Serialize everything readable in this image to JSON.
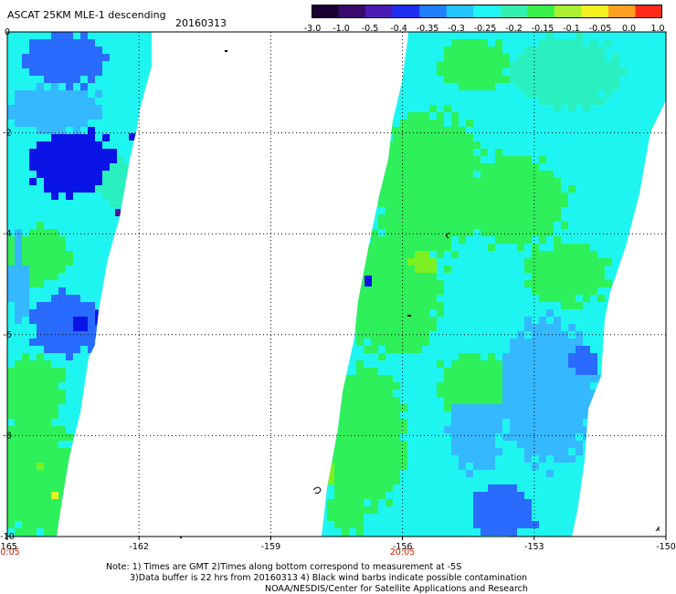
{
  "header": {
    "title": "ASCAT 25KM MLE-1 descending",
    "date": "20160313"
  },
  "colorbar": {
    "labels": [
      "-3.0",
      "-1.0",
      "-0.5",
      "-0.4",
      "-0.35",
      "-0.3",
      "-0.25",
      "-0.2",
      "-0.15",
      "-0.1",
      "-0.05",
      "0.0",
      "1.0"
    ],
    "colors": [
      "#1a0033",
      "#3a0a6e",
      "#4b1bb4",
      "#1f2ef0",
      "#1f7fff",
      "#23c5ff",
      "#1ff5f5",
      "#33f0b0",
      "#3af04a",
      "#a8f030",
      "#f5f020",
      "#ffa020",
      "#ff2a1a"
    ]
  },
  "map": {
    "x_axis": {
      "ticks": [
        "-165",
        "-162",
        "-159",
        "-156",
        "-153",
        "-150"
      ]
    },
    "y_axis": {
      "ticks": [
        "0",
        "-2",
        "-4",
        "-6",
        "-8",
        "-10"
      ]
    },
    "time_labels": [
      "20:05",
      "20:05"
    ],
    "palette": {
      "dblue": "#0b14e6",
      "mblue": "#2a6bff",
      "lblue": "#35b8ff",
      "cyan": "#1ef5f0",
      "aqua": "#2af0c0",
      "green": "#2ef05a",
      "lgreen": "#7cf020",
      "yellow": "#e5f520",
      "purple": "#5010a0"
    }
  },
  "notes": {
    "line1": "Note: 1) Times are GMT 2)Times along bottom correspond to measurement at -5S",
    "line2": "3)Data buffer is 22 hrs from 20160313 4) Black wind barbs indicate possible contamination",
    "line3": "NOAA/NESDIS/Center for Satellite Applications and Research"
  }
}
